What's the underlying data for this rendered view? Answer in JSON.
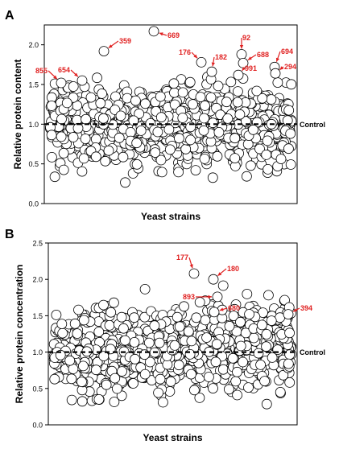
{
  "panels": [
    {
      "panel_label": "A",
      "chart_data": {
        "type": "scatter",
        "xlabel": "Yeast strains",
        "ylabel": "Relative protein content",
        "ylim": [
          0.0,
          2.25
        ],
        "yticks": [
          "0.0",
          "0.5",
          "1.0",
          "1.5",
          "2.0"
        ],
        "grid": false,
        "reference_line": {
          "value": 1.0,
          "label": "Control",
          "style": "dashed"
        },
        "point_count_estimate": 1000,
        "distribution": {
          "center": 1.0,
          "spread": 0.24,
          "min": 0.25,
          "max": 1.6
        },
        "annotated_points": [
          {
            "label": "855",
            "y": 1.52
          },
          {
            "label": "654",
            "y": 1.55
          },
          {
            "label": "359",
            "y": 1.92
          },
          {
            "label": "669",
            "y": 2.17
          },
          {
            "label": "176",
            "y": 1.78
          },
          {
            "label": "182",
            "y": 1.66
          },
          {
            "label": "92",
            "y": 1.88
          },
          {
            "label": "688",
            "y": 1.77
          },
          {
            "label": "991",
            "y": 1.62
          },
          {
            "label": "694",
            "y": 1.72
          },
          {
            "label": "294",
            "y": 1.64
          }
        ]
      }
    },
    {
      "panel_label": "B",
      "chart_data": {
        "type": "scatter",
        "xlabel": "Yeast strains",
        "ylabel": "Relative protein concentration",
        "ylim": [
          0.0,
          2.5
        ],
        "yticks": [
          "0.0",
          "0.5",
          "1.0",
          "1.5",
          "2.0",
          "2.5"
        ],
        "grid": false,
        "reference_line": {
          "value": 1.0,
          "label": "Control",
          "style": "dashed"
        },
        "point_count_estimate": 1000,
        "distribution": {
          "center": 1.05,
          "spread": 0.27,
          "min": 0.28,
          "max": 2.15
        },
        "annotated_points": [
          {
            "label": "177",
            "y": 2.08
          },
          {
            "label": "180",
            "y": 2.0
          },
          {
            "label": "893",
            "y": 1.76
          },
          {
            "label": "680",
            "y": 1.55
          },
          {
            "label": "394",
            "y": 1.52
          }
        ]
      }
    }
  ],
  "colors": {
    "marker_fill": "#ffffff",
    "marker_stroke": "#000000",
    "annotation": "#e02020",
    "axis": "#000000"
  }
}
